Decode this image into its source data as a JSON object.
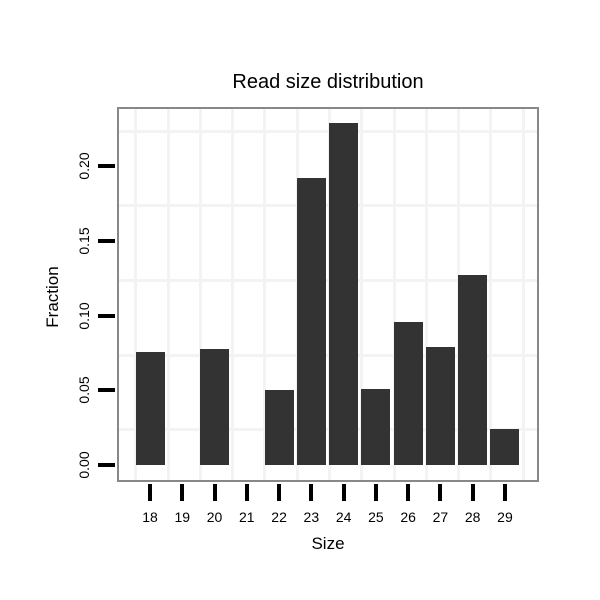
{
  "chart_data": {
    "type": "bar",
    "title": "Read size distribution",
    "xlabel": "Size",
    "ylabel": "Fraction",
    "categories": [
      "18",
      "19",
      "20",
      "21",
      "22",
      "23",
      "24",
      "25",
      "26",
      "27",
      "28",
      "29"
    ],
    "values": [
      0.076,
      0,
      0.078,
      0,
      0.05,
      0.192,
      0.229,
      0.051,
      0.096,
      0.079,
      0.127,
      0.024
    ],
    "y_ticks": [
      "0.00",
      "0.05",
      "0.10",
      "0.15",
      "0.20"
    ],
    "y_tick_values": [
      0.0,
      0.05,
      0.1,
      0.15,
      0.2
    ],
    "ylim": [
      0,
      0.24
    ],
    "minor_gridlines_y": [
      0.025,
      0.075,
      0.125,
      0.175,
      0.225
    ],
    "grid": true,
    "legend": "none",
    "colors": {
      "bar": "#333333",
      "panel_border": "#888888",
      "grid": "#f3f3f3",
      "text": "#000000",
      "background": "#ffffff"
    }
  }
}
